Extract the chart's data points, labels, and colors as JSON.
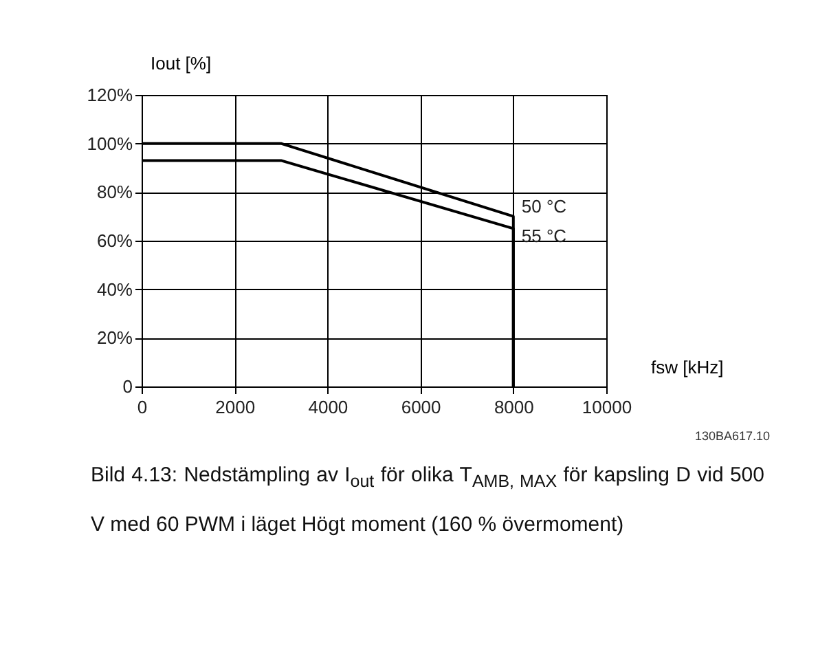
{
  "chart_data": {
    "type": "line",
    "xlabel": "fsw [kHz]",
    "ylabel": "Iout [%]",
    "x": [
      0,
      3000,
      8000,
      8000
    ],
    "series": [
      {
        "name": "50 °C",
        "color": "#000000",
        "values": [
          100,
          100,
          70,
          0
        ]
      },
      {
        "name": "55 °C",
        "color": "#000000",
        "values": [
          93,
          93,
          65,
          0
        ]
      }
    ],
    "xlim": [
      0,
      10000
    ],
    "xticks": [
      0,
      2000,
      4000,
      6000,
      8000,
      10000
    ],
    "ylim": [
      0,
      120
    ],
    "yticks": [
      0,
      {
        "value": 20,
        "label": "20%"
      },
      {
        "value": 40,
        "label": "40%"
      },
      {
        "value": 60,
        "label": "60%"
      },
      {
        "value": 80,
        "label": "80%"
      },
      {
        "value": 100,
        "label": "100%"
      },
      {
        "value": 120,
        "label": "120%"
      }
    ],
    "grid": true,
    "legend": false,
    "marker": "none",
    "line_style": "solid",
    "annotations": [
      "130BA617.10",
      "Bild 4.13: Nedstämpling av I$_{out}$ för olika T$_{AMB, MAX}$ för kapsling D vid 500 V med 60 PWM i läget Högt moment (160 % övermoment)"
    ]
  }
}
